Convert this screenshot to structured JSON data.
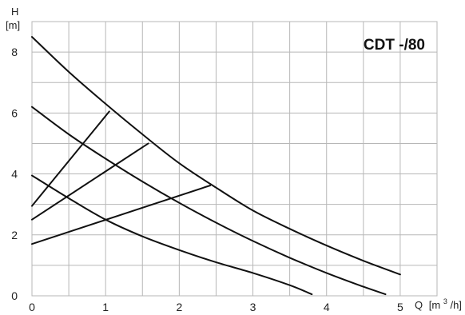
{
  "chart_data": {
    "type": "line",
    "title": "CDT -/80",
    "ylabel": "H",
    "ylabel_unit": "[m]",
    "xlabel": "Q",
    "xlabel_unit_prefix": "[m",
    "xlabel_unit_sup": "3",
    "xlabel_unit_suffix": "/h]",
    "xlim": [
      0,
      5.5
    ],
    "ylim": [
      0,
      9
    ],
    "xticks": [
      "0",
      "1",
      "2",
      "3",
      "4",
      "5"
    ],
    "yticks": [
      "0",
      "2",
      "4",
      "6",
      "8"
    ],
    "grid": true,
    "series": [
      {
        "kind": "curve",
        "points": [
          [
            0,
            8.5
          ],
          [
            0.5,
            7.35
          ],
          [
            1.0,
            6.3
          ],
          [
            1.5,
            5.3
          ],
          [
            2.0,
            4.35
          ],
          [
            2.5,
            3.55
          ],
          [
            3.0,
            2.8
          ],
          [
            3.5,
            2.2
          ],
          [
            4.0,
            1.65
          ],
          [
            4.5,
            1.15
          ],
          [
            5.0,
            0.7
          ]
        ]
      },
      {
        "kind": "curve",
        "points": [
          [
            0,
            6.2
          ],
          [
            0.5,
            5.3
          ],
          [
            1.0,
            4.5
          ],
          [
            1.5,
            3.75
          ],
          [
            2.0,
            3.05
          ],
          [
            2.5,
            2.4
          ],
          [
            3.0,
            1.8
          ],
          [
            3.5,
            1.25
          ],
          [
            4.0,
            0.75
          ],
          [
            4.5,
            0.3
          ],
          [
            4.8,
            0.05
          ]
        ]
      },
      {
        "kind": "curve",
        "points": [
          [
            0,
            3.95
          ],
          [
            0.5,
            3.2
          ],
          [
            1.0,
            2.5
          ],
          [
            1.5,
            1.95
          ],
          [
            2.0,
            1.5
          ],
          [
            2.5,
            1.1
          ],
          [
            3.0,
            0.75
          ],
          [
            3.5,
            0.35
          ],
          [
            3.8,
            0.05
          ]
        ]
      },
      {
        "kind": "control",
        "points": [
          [
            0,
            2.95
          ],
          [
            1.05,
            6.05
          ]
        ]
      },
      {
        "kind": "control",
        "points": [
          [
            0,
            2.5
          ],
          [
            1.58,
            5.0
          ]
        ]
      },
      {
        "kind": "control",
        "points": [
          [
            0,
            1.7
          ],
          [
            2.42,
            3.62
          ]
        ]
      }
    ]
  }
}
